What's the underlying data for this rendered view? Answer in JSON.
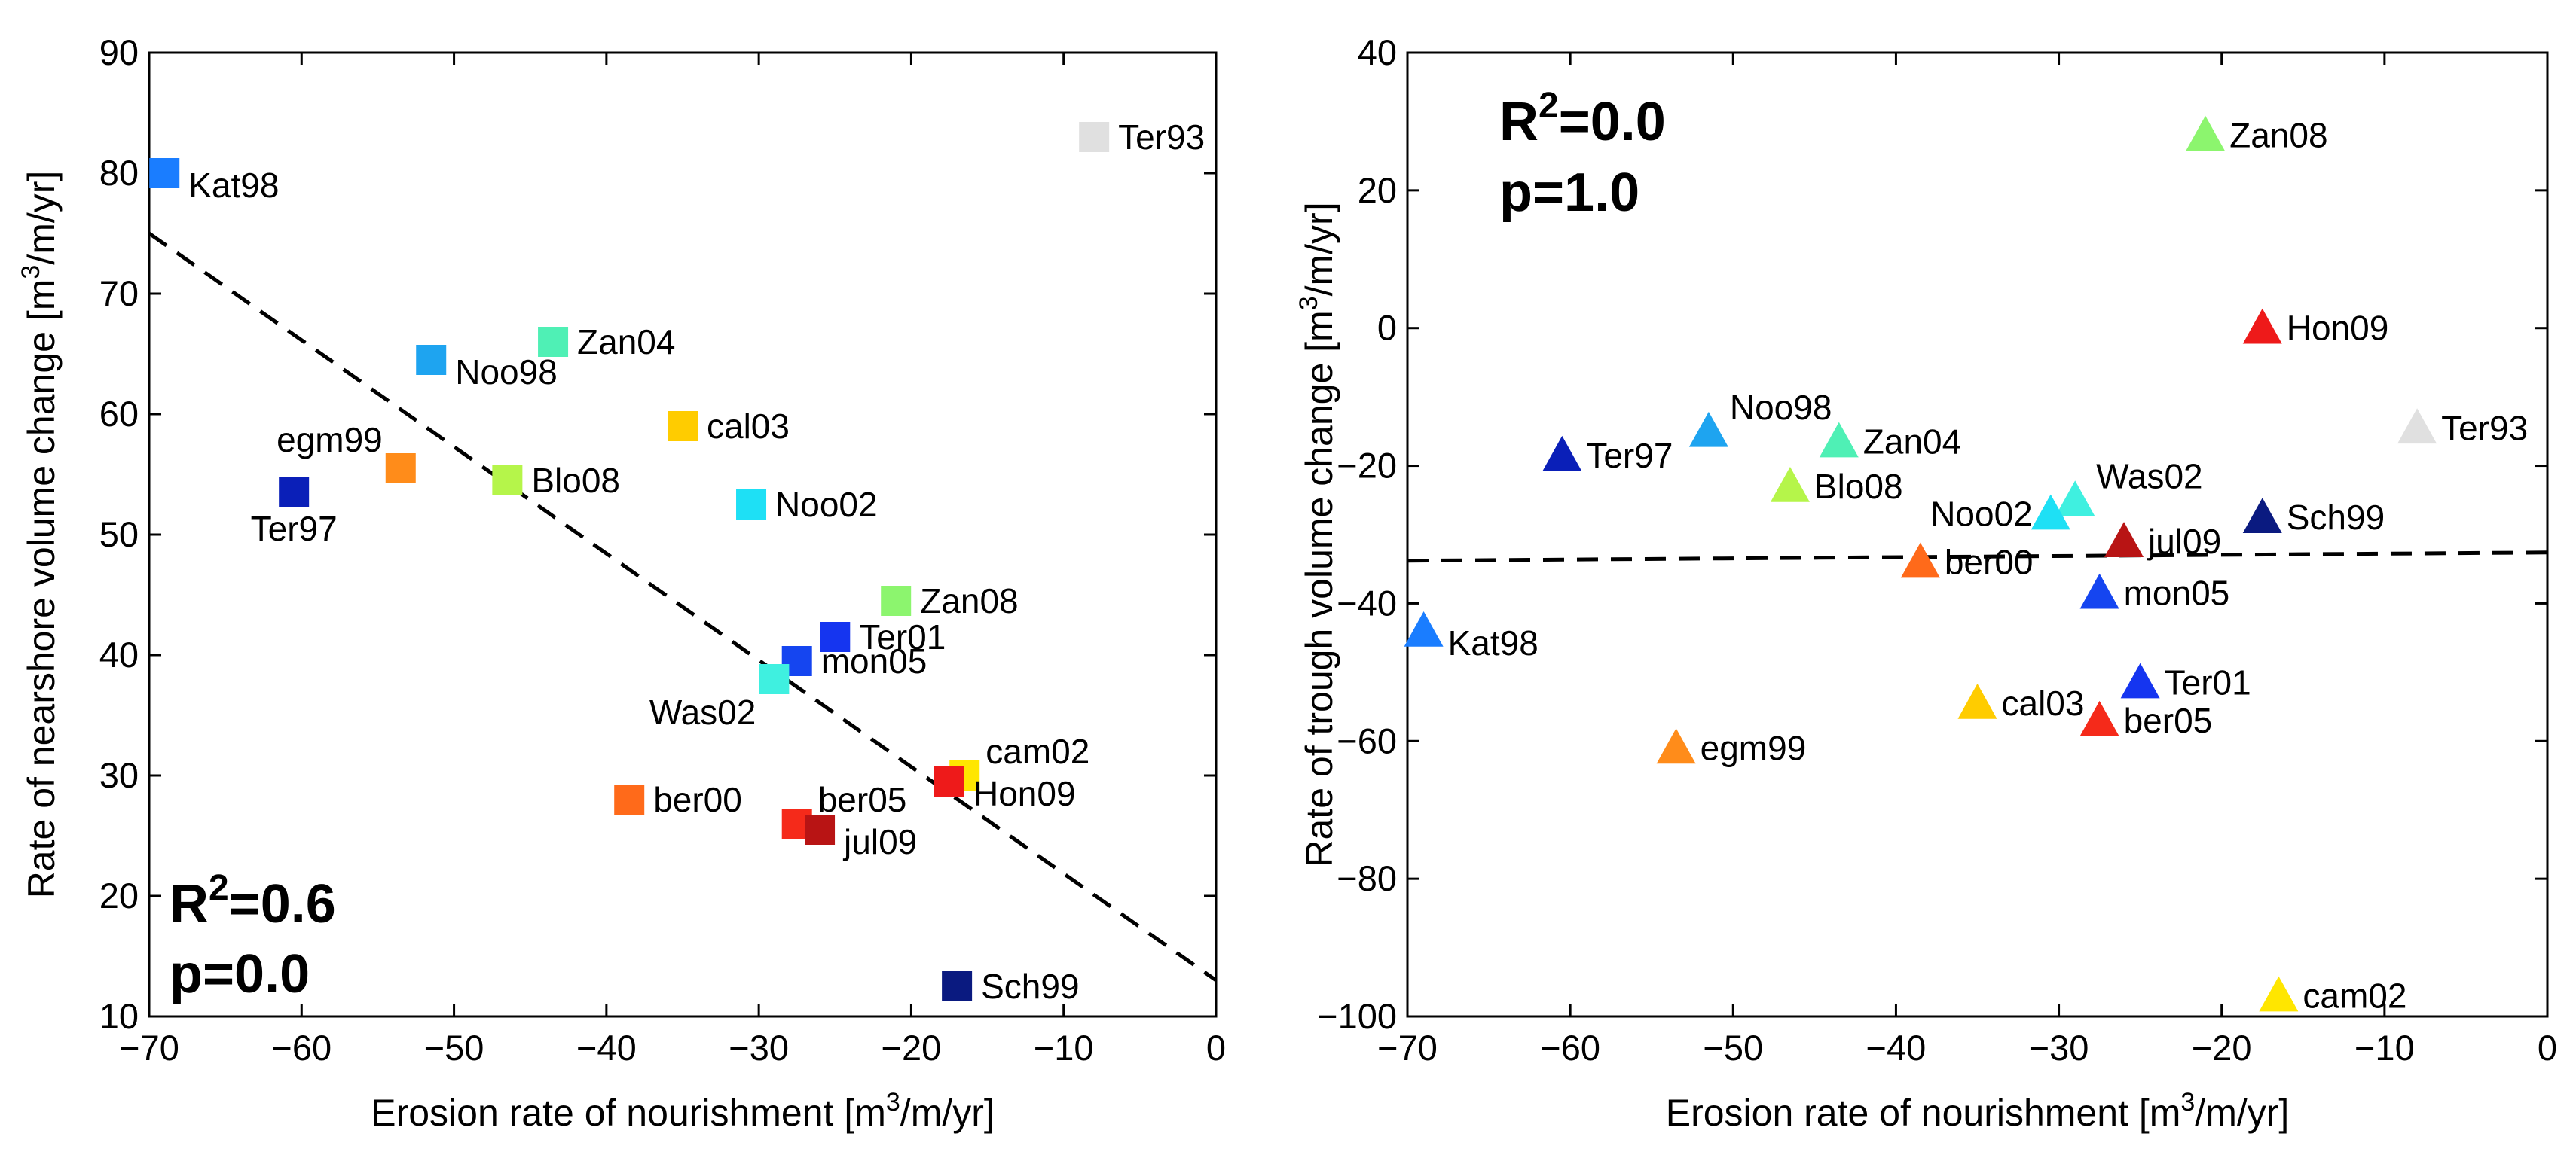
{
  "chart_data": [
    {
      "type": "scatter",
      "marker": "square",
      "xlabel": "Erosion rate of nourishment [m³/m/yr]",
      "xlabel_parts": {
        "pre": "Erosion rate of nourishment [m",
        "sup": "3",
        "post": "/m/yr]"
      },
      "ylabel": "Rate of nearshore volume change [m³/m/yr]",
      "ylabel_parts": {
        "pre": "Rate of nearshore volume change [m",
        "sup": "3",
        "post": "/m/yr]"
      },
      "xlim": [
        -70,
        0
      ],
      "ylim": [
        10,
        90
      ],
      "xticks": [
        "−70",
        "−60",
        "−50",
        "−40",
        "−30",
        "−20",
        "−10",
        "0"
      ],
      "yticks": [
        "10",
        "20",
        "30",
        "40",
        "50",
        "60",
        "70",
        "80",
        "90"
      ],
      "stats": {
        "r2": "R²=0.6",
        "r2_pre": "R",
        "r2_sup": "2",
        "r2_post": "=0.6",
        "p": "p=0.0",
        "location": "bottom-left"
      },
      "fit_line": {
        "style": "dashed",
        "x": [
          -70,
          0
        ],
        "y": [
          75,
          13
        ]
      },
      "points": [
        {
          "label": "Kat98",
          "x": -69,
          "y": 80,
          "color": "#1a7dff",
          "label_pos": "below-right"
        },
        {
          "label": "Ter93",
          "x": -8,
          "y": 83,
          "color": "#e0e0e0",
          "label_color": "#c8c8c8",
          "label_pos": "right"
        },
        {
          "label": "Noo98",
          "x": -51.5,
          "y": 64.5,
          "color": "#1ea4f0",
          "label_pos": "below-right"
        },
        {
          "label": "Zan04",
          "x": -43.5,
          "y": 66,
          "color": "#4ff0b5",
          "label_pos": "right"
        },
        {
          "label": "cal03",
          "x": -35,
          "y": 59,
          "color": "#ffcc00",
          "label_pos": "right"
        },
        {
          "label": "egm99",
          "x": -53.5,
          "y": 55.5,
          "color": "#ff8c1a",
          "label_pos": "above-left"
        },
        {
          "label": "Blo08",
          "x": -46.5,
          "y": 54.5,
          "color": "#b5f54a",
          "label_pos": "right"
        },
        {
          "label": "Ter97",
          "x": -60.5,
          "y": 53.5,
          "color": "#0a1fb8",
          "label_pos": "below"
        },
        {
          "label": "Noo02",
          "x": -30.5,
          "y": 52.5,
          "color": "#1ee0f5",
          "label_pos": "right"
        },
        {
          "label": "Zan08",
          "x": -21,
          "y": 44.5,
          "color": "#8cf56e",
          "label_pos": "right"
        },
        {
          "label": "Ter01",
          "x": -25,
          "y": 41.5,
          "color": "#1535f0",
          "label_pos": "right"
        },
        {
          "label": "mon05",
          "x": -27.5,
          "y": 39.5,
          "color": "#1545f0",
          "label_pos": "right"
        },
        {
          "label": "Was02",
          "x": -29,
          "y": 38,
          "color": "#3ff0e0",
          "label_pos": "below-left"
        },
        {
          "label": "cam02",
          "x": -16.5,
          "y": 30,
          "color": "#ffe600",
          "label_pos": "above-right"
        },
        {
          "label": "Hon09",
          "x": -17.5,
          "y": 29.5,
          "color": "#ee1a1a",
          "label_pos": "below-right"
        },
        {
          "label": "ber00",
          "x": -38.5,
          "y": 28,
          "color": "#ff6a1a",
          "label_pos": "right"
        },
        {
          "label": "ber05",
          "x": -27.5,
          "y": 26,
          "color": "#f52a1a",
          "label_pos": "above-right"
        },
        {
          "label": "jul09",
          "x": -26,
          "y": 25.5,
          "color": "#b81414",
          "label_pos": "below-right"
        },
        {
          "label": "Sch99",
          "x": -17,
          "y": 12.5,
          "color": "#0a1a80",
          "label_pos": "right"
        }
      ]
    },
    {
      "type": "scatter",
      "marker": "triangle",
      "xlabel": "Erosion rate of nourishment [m³/m/yr]",
      "xlabel_parts": {
        "pre": "Erosion rate of nourishment [m",
        "sup": "3",
        "post": "/m/yr]"
      },
      "ylabel": "Rate of trough volume change [m³/m/yr]",
      "ylabel_parts": {
        "pre": "Rate of trough volume change [m",
        "sup": "3",
        "post": "/m/yr]"
      },
      "xlim": [
        -70,
        0
      ],
      "ylim": [
        -100,
        40
      ],
      "xticks": [
        "−70",
        "−60",
        "−50",
        "−40",
        "−30",
        "−20",
        "−10",
        "0"
      ],
      "yticks": [
        "−100",
        "−80",
        "−60",
        "−40",
        "−20",
        "0",
        "20",
        "40"
      ],
      "stats": {
        "r2": "R²=0.0",
        "r2_pre": "R",
        "r2_sup": "2",
        "r2_post": "=0.0",
        "p": "p=1.0",
        "location": "top-left"
      },
      "fit_line": {
        "style": "dashed",
        "x": [
          -70,
          0
        ],
        "y": [
          -33.8,
          -32.6
        ]
      },
      "points": [
        {
          "label": "Zan08",
          "x": -21,
          "y": 28,
          "color": "#8cf56e",
          "label_pos": "right"
        },
        {
          "label": "Hon09",
          "x": -17.5,
          "y": 0,
          "color": "#ee1a1a",
          "label_pos": "right"
        },
        {
          "label": "Ter93",
          "x": -8,
          "y": -14.5,
          "color": "#e0e0e0",
          "label_color": "#c8c8c8",
          "label_pos": "right"
        },
        {
          "label": "Noo98",
          "x": -51.5,
          "y": -15,
          "color": "#1ea4f0",
          "label_pos": "above-right"
        },
        {
          "label": "Zan04",
          "x": -43.5,
          "y": -16.5,
          "color": "#4ff0b5",
          "label_pos": "right"
        },
        {
          "label": "Ter97",
          "x": -60.5,
          "y": -18.5,
          "color": "#0a1fb8",
          "label_pos": "right"
        },
        {
          "label": "Blo08",
          "x": -46.5,
          "y": -23,
          "color": "#b5f54a",
          "label_pos": "right"
        },
        {
          "label": "Was02",
          "x": -29,
          "y": -25,
          "color": "#3ff0e0",
          "label_pos": "above-right"
        },
        {
          "label": "Noo02",
          "x": -30.5,
          "y": -27,
          "color": "#1ee0f5",
          "label_pos": "left"
        },
        {
          "label": "Sch99",
          "x": -17.5,
          "y": -27.5,
          "color": "#0a1a80",
          "label_pos": "right"
        },
        {
          "label": "jul09",
          "x": -26,
          "y": -31,
          "color": "#b81414",
          "label_pos": "right"
        },
        {
          "label": "ber00",
          "x": -38.5,
          "y": -34,
          "color": "#ff6a1a",
          "label_pos": "right"
        },
        {
          "label": "mon05",
          "x": -27.5,
          "y": -38.5,
          "color": "#1545f0",
          "label_pos": "right"
        },
        {
          "label": "Kat98",
          "x": -69,
          "y": -44,
          "color": "#1a7dff",
          "label_pos": "below-right"
        },
        {
          "label": "Ter01",
          "x": -25,
          "y": -51.5,
          "color": "#1535f0",
          "label_pos": "right"
        },
        {
          "label": "cal03",
          "x": -35,
          "y": -54.5,
          "color": "#ffcc00",
          "label_pos": "right"
        },
        {
          "label": "ber05",
          "x": -27.5,
          "y": -57,
          "color": "#f52a1a",
          "label_pos": "right"
        },
        {
          "label": "egm99",
          "x": -53.5,
          "y": -61,
          "color": "#ff8c1a",
          "label_pos": "right"
        },
        {
          "label": "cam02",
          "x": -16.5,
          "y": -97,
          "color": "#ffe600",
          "label_pos": "right"
        }
      ]
    }
  ]
}
